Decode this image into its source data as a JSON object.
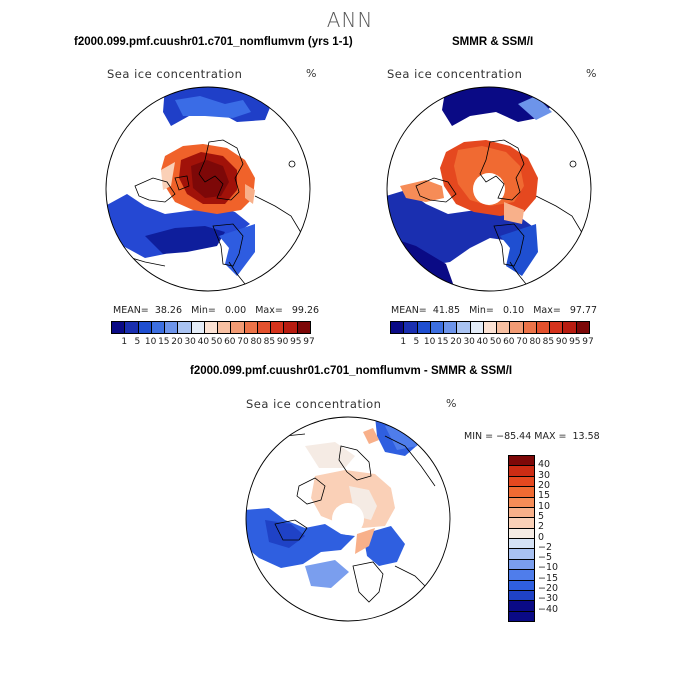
{
  "main_title": "ANN",
  "panels": [
    {
      "title": "f2000.099.pmf.cuushr01.c701_nomflumvm (yrs 1-1)",
      "label": "Sea ice concentration",
      "unit": "%",
      "stats": {
        "mean_label": "MEAN=",
        "mean": "38.26",
        "min_label": "Min=",
        "min": "0.00",
        "max_label": "Max=",
        "max": "99.26"
      }
    },
    {
      "title": "SMMR & SSM/I",
      "label": "Sea ice concentration",
      "unit": "%",
      "stats": {
        "mean_label": "MEAN=",
        "mean": "41.85",
        "min_label": "Min=",
        "min": "0.10",
        "max_label": "Max=",
        "max": "97.77"
      }
    },
    {
      "title": "f2000.099.pmf.cuushr01.c701_nomflumvm - SMMR & SSM/I",
      "label": "Sea ice concentration",
      "unit": "%",
      "minmax": "MIN = −85.44 MAX =  13.58"
    }
  ],
  "abs_colorbar": {
    "colors": [
      "#0a0a85",
      "#1a2fb0",
      "#1f4fd1",
      "#3d6fe0",
      "#6d94ea",
      "#a9c3f2",
      "#e3ecf8",
      "#fbe2d4",
      "#f7c0a2",
      "#f29b74",
      "#ec7348",
      "#e3512d",
      "#d5331c",
      "#b81c10",
      "#7d0808"
    ],
    "ticks": [
      "1",
      "5",
      "10",
      "15",
      "20",
      "30",
      "40",
      "50",
      "60",
      "70",
      "80",
      "85",
      "90",
      "95",
      "97"
    ]
  },
  "diff_colorbar": {
    "colors": [
      "#7d0808",
      "#cc2c14",
      "#e5481f",
      "#f06a32",
      "#f68c57",
      "#f8b08a",
      "#fad0b7",
      "#f5ebe4",
      "#d5e2f6",
      "#a8c1f2",
      "#7a9eee",
      "#4f7deb",
      "#2f5fe0",
      "#1f42c6",
      "#0a0a85"
    ],
    "ticks": [
      "40",
      "30",
      "20",
      "15",
      "10",
      "5",
      "2",
      "0",
      "−2",
      "−5",
      "−10",
      "−15",
      "−20",
      "−30",
      "−40"
    ]
  }
}
